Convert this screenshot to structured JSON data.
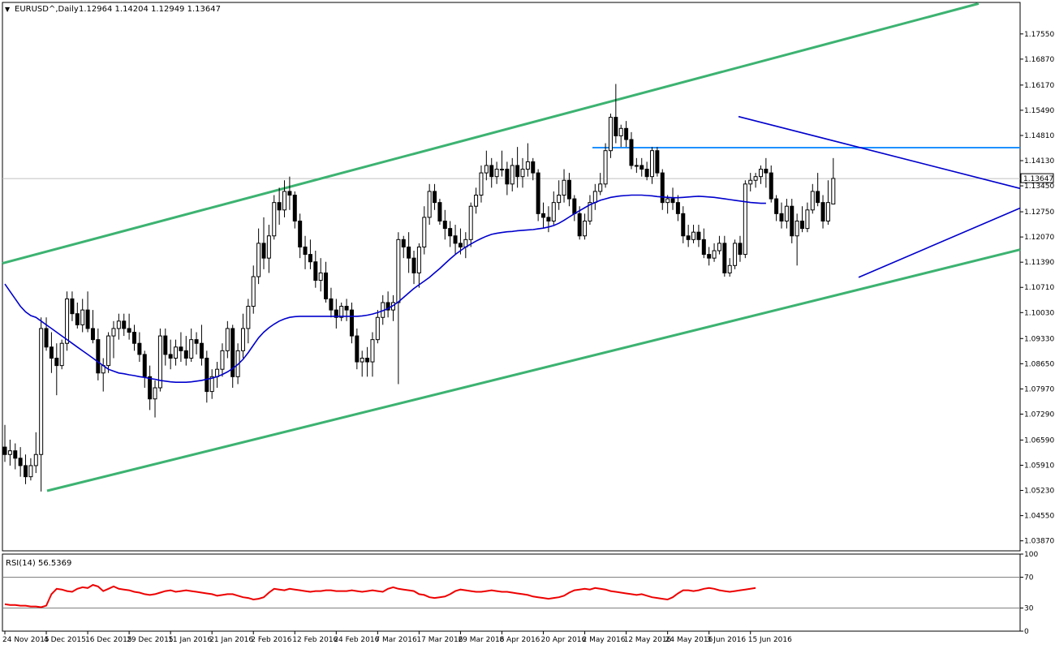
{
  "header": {
    "marker": "▼",
    "symbol_timeframe": "EURUSD^,Daily",
    "ohlc": "1.12964 1.14204 1.12949 1.13647"
  },
  "rsi_label": "RSI(14) 56.5369",
  "chart_data": {
    "type": "candlestick",
    "colors": {
      "channel": "#3cb371",
      "moving_average": "#0000cd",
      "triangle": "#0000cd",
      "resistance": "#1e90ff",
      "rsi": "#ee0000",
      "candles": "#000000",
      "bid_line": "#c0c0c0"
    },
    "price_axis": {
      "range": [
        1.036,
        1.184
      ],
      "ticks": [
        "1.17550",
        "1.16870",
        "1.16170",
        "1.15490",
        "1.14810",
        "1.14130",
        "1.13450",
        "1.12750",
        "1.12070",
        "1.11390",
        "1.10710",
        "1.10030",
        "1.09330",
        "1.08650",
        "1.07970",
        "1.07290",
        "1.06590",
        "1.05910",
        "1.05230",
        "1.04550",
        "1.03870"
      ],
      "current_price": "1.13647"
    },
    "rsi_axis": {
      "range": [
        0,
        100
      ],
      "ticks": [
        "100",
        "70",
        "30",
        "0"
      ],
      "levels": [
        70,
        30
      ]
    },
    "date_labels": [
      "24 Nov 2015",
      "4 Dec 2015",
      "16 Dec 2015",
      "29 Dec 2015",
      "11 Jan 2016",
      "21 Jan 2016",
      "2 Feb 2016",
      "12 Feb 2016",
      "24 Feb 2016",
      "7 Mar 2016",
      "17 Mar 2016",
      "29 Mar 2016",
      "8 Apr 2016",
      "20 Apr 2016",
      "2 May 2016",
      "12 May 2016",
      "24 May 2016",
      "3 Jun 2016",
      "15 Jun 2016"
    ],
    "date_label_bar_index": [
      0,
      8,
      16,
      24,
      32,
      40,
      48,
      56,
      64,
      72,
      80,
      88,
      96,
      104,
      112,
      120,
      128,
      136,
      144
    ],
    "candles": [
      [
        1.064,
        1.07,
        1.06,
        1.062
      ],
      [
        1.062,
        1.066,
        1.059,
        1.063
      ],
      [
        1.063,
        1.065,
        1.058,
        1.061
      ],
      [
        1.061,
        1.064,
        1.056,
        1.059
      ],
      [
        1.059,
        1.062,
        1.054,
        1.056
      ],
      [
        1.056,
        1.061,
        1.055,
        1.059
      ],
      [
        1.059,
        1.068,
        1.057,
        1.062
      ],
      [
        1.062,
        1.099,
        1.052,
        1.096
      ],
      [
        1.096,
        1.099,
        1.09,
        1.091
      ],
      [
        1.091,
        1.095,
        1.084,
        1.088
      ],
      [
        1.088,
        1.092,
        1.078,
        1.086
      ],
      [
        1.086,
        1.093,
        1.085,
        1.092
      ],
      [
        1.092,
        1.106,
        1.09,
        1.104
      ],
      [
        1.104,
        1.106,
        1.098,
        1.1
      ],
      [
        1.1,
        1.103,
        1.096,
        1.097
      ],
      [
        1.097,
        1.104,
        1.095,
        1.101
      ],
      [
        1.101,
        1.106,
        1.095,
        1.096
      ],
      [
        1.096,
        1.101,
        1.092,
        1.093
      ],
      [
        1.093,
        1.096,
        1.082,
        1.084
      ],
      [
        1.084,
        1.088,
        1.079,
        1.086
      ],
      [
        1.086,
        1.095,
        1.084,
        1.094
      ],
      [
        1.094,
        1.098,
        1.088,
        1.096
      ],
      [
        1.096,
        1.1,
        1.093,
        1.098
      ],
      [
        1.098,
        1.1,
        1.094,
        1.096
      ],
      [
        1.096,
        1.1,
        1.093,
        1.095
      ],
      [
        1.095,
        1.097,
        1.09,
        1.092
      ],
      [
        1.092,
        1.095,
        1.087,
        1.089
      ],
      [
        1.089,
        1.09,
        1.08,
        1.083
      ],
      [
        1.083,
        1.086,
        1.074,
        1.077
      ],
      [
        1.077,
        1.082,
        1.072,
        1.08
      ],
      [
        1.08,
        1.096,
        1.079,
        1.094
      ],
      [
        1.094,
        1.096,
        1.086,
        1.089
      ],
      [
        1.089,
        1.093,
        1.085,
        1.088
      ],
      [
        1.088,
        1.093,
        1.086,
        1.091
      ],
      [
        1.091,
        1.095,
        1.087,
        1.09
      ],
      [
        1.09,
        1.094,
        1.086,
        1.088
      ],
      [
        1.088,
        1.096,
        1.087,
        1.093
      ],
      [
        1.093,
        1.095,
        1.089,
        1.092
      ],
      [
        1.092,
        1.097,
        1.086,
        1.088
      ],
      [
        1.088,
        1.09,
        1.076,
        1.079
      ],
      [
        1.079,
        1.085,
        1.077,
        1.083
      ],
      [
        1.083,
        1.087,
        1.08,
        1.085
      ],
      [
        1.085,
        1.092,
        1.083,
        1.09
      ],
      [
        1.09,
        1.098,
        1.088,
        1.096
      ],
      [
        1.096,
        1.097,
        1.08,
        1.083
      ],
      [
        1.083,
        1.092,
        1.081,
        1.09
      ],
      [
        1.09,
        1.1,
        1.088,
        1.096
      ],
      [
        1.096,
        1.104,
        1.092,
        1.102
      ],
      [
        1.102,
        1.113,
        1.1,
        1.11
      ],
      [
        1.11,
        1.123,
        1.108,
        1.119
      ],
      [
        1.119,
        1.126,
        1.112,
        1.115
      ],
      [
        1.115,
        1.124,
        1.111,
        1.121
      ],
      [
        1.121,
        1.132,
        1.12,
        1.13
      ],
      [
        1.13,
        1.134,
        1.124,
        1.128
      ],
      [
        1.128,
        1.136,
        1.126,
        1.133
      ],
      [
        1.133,
        1.137,
        1.128,
        1.132
      ],
      [
        1.132,
        1.133,
        1.123,
        1.125
      ],
      [
        1.125,
        1.127,
        1.115,
        1.118
      ],
      [
        1.118,
        1.121,
        1.112,
        1.116
      ],
      [
        1.116,
        1.12,
        1.112,
        1.114
      ],
      [
        1.114,
        1.117,
        1.107,
        1.109
      ],
      [
        1.109,
        1.115,
        1.106,
        1.111
      ],
      [
        1.111,
        1.114,
        1.103,
        1.104
      ],
      [
        1.104,
        1.107,
        1.099,
        1.101
      ],
      [
        1.101,
        1.104,
        1.096,
        1.099
      ],
      [
        1.099,
        1.103,
        1.098,
        1.102
      ],
      [
        1.102,
        1.104,
        1.098,
        1.101
      ],
      [
        1.101,
        1.103,
        1.092,
        1.094
      ],
      [
        1.094,
        1.096,
        1.085,
        1.087
      ],
      [
        1.087,
        1.09,
        1.083,
        1.088
      ],
      [
        1.088,
        1.091,
        1.083,
        1.087
      ],
      [
        1.087,
        1.095,
        1.083,
        1.093
      ],
      [
        1.093,
        1.101,
        1.092,
        1.099
      ],
      [
        1.099,
        1.105,
        1.097,
        1.103
      ],
      [
        1.103,
        1.106,
        1.099,
        1.101
      ],
      [
        1.101,
        1.105,
        1.098,
        1.103
      ],
      [
        1.103,
        1.122,
        1.081,
        1.12
      ],
      [
        1.12,
        1.121,
        1.115,
        1.118
      ],
      [
        1.118,
        1.122,
        1.111,
        1.115
      ],
      [
        1.115,
        1.117,
        1.108,
        1.111
      ],
      [
        1.111,
        1.119,
        1.107,
        1.118
      ],
      [
        1.118,
        1.129,
        1.116,
        1.126
      ],
      [
        1.126,
        1.135,
        1.124,
        1.133
      ],
      [
        1.133,
        1.135,
        1.128,
        1.13
      ],
      [
        1.13,
        1.131,
        1.124,
        1.125
      ],
      [
        1.125,
        1.128,
        1.12,
        1.123
      ],
      [
        1.123,
        1.125,
        1.118,
        1.121
      ],
      [
        1.121,
        1.124,
        1.116,
        1.119
      ],
      [
        1.119,
        1.123,
        1.116,
        1.118
      ],
      [
        1.118,
        1.122,
        1.115,
        1.12
      ],
      [
        1.12,
        1.13,
        1.118,
        1.129
      ],
      [
        1.129,
        1.134,
        1.127,
        1.132
      ],
      [
        1.132,
        1.14,
        1.13,
        1.138
      ],
      [
        1.138,
        1.144,
        1.136,
        1.14
      ],
      [
        1.14,
        1.142,
        1.134,
        1.137
      ],
      [
        1.137,
        1.141,
        1.135,
        1.139
      ],
      [
        1.139,
        1.144,
        1.137,
        1.139
      ],
      [
        1.139,
        1.141,
        1.132,
        1.135
      ],
      [
        1.135,
        1.142,
        1.133,
        1.14
      ],
      [
        1.14,
        1.145,
        1.134,
        1.137
      ],
      [
        1.137,
        1.142,
        1.134,
        1.139
      ],
      [
        1.139,
        1.146,
        1.137,
        1.141
      ],
      [
        1.141,
        1.142,
        1.136,
        1.138
      ],
      [
        1.138,
        1.139,
        1.125,
        1.127
      ],
      [
        1.127,
        1.13,
        1.123,
        1.126
      ],
      [
        1.126,
        1.129,
        1.122,
        1.125
      ],
      [
        1.125,
        1.133,
        1.124,
        1.13
      ],
      [
        1.13,
        1.136,
        1.128,
        1.132
      ],
      [
        1.132,
        1.139,
        1.13,
        1.136
      ],
      [
        1.136,
        1.138,
        1.129,
        1.131
      ],
      [
        1.131,
        1.132,
        1.125,
        1.127
      ],
      [
        1.127,
        1.129,
        1.12,
        1.121
      ],
      [
        1.121,
        1.127,
        1.12,
        1.125
      ],
      [
        1.125,
        1.132,
        1.124,
        1.13
      ],
      [
        1.13,
        1.135,
        1.128,
        1.133
      ],
      [
        1.133,
        1.138,
        1.132,
        1.135
      ],
      [
        1.135,
        1.146,
        1.134,
        1.144
      ],
      [
        1.144,
        1.154,
        1.142,
        1.153
      ],
      [
        1.153,
        1.162,
        1.146,
        1.148
      ],
      [
        1.148,
        1.151,
        1.145,
        1.15
      ],
      [
        1.15,
        1.152,
        1.145,
        1.147
      ],
      [
        1.147,
        1.149,
        1.139,
        1.14
      ],
      [
        1.14,
        1.142,
        1.138,
        1.14
      ],
      [
        1.14,
        1.142,
        1.137,
        1.139
      ],
      [
        1.139,
        1.141,
        1.136,
        1.137
      ],
      [
        1.137,
        1.145,
        1.135,
        1.144
      ],
      [
        1.144,
        1.145,
        1.137,
        1.138
      ],
      [
        1.138,
        1.139,
        1.128,
        1.13
      ],
      [
        1.13,
        1.132,
        1.127,
        1.131
      ],
      [
        1.131,
        1.134,
        1.128,
        1.13
      ],
      [
        1.13,
        1.132,
        1.125,
        1.127
      ],
      [
        1.127,
        1.129,
        1.119,
        1.121
      ],
      [
        1.121,
        1.124,
        1.118,
        1.12
      ],
      [
        1.12,
        1.124,
        1.119,
        1.122
      ],
      [
        1.122,
        1.124,
        1.118,
        1.12
      ],
      [
        1.12,
        1.123,
        1.115,
        1.116
      ],
      [
        1.116,
        1.118,
        1.113,
        1.115
      ],
      [
        1.115,
        1.119,
        1.114,
        1.117
      ],
      [
        1.117,
        1.121,
        1.116,
        1.119
      ],
      [
        1.119,
        1.121,
        1.11,
        1.111
      ],
      [
        1.111,
        1.115,
        1.11,
        1.113
      ],
      [
        1.113,
        1.12,
        1.112,
        1.119
      ],
      [
        1.119,
        1.121,
        1.114,
        1.116
      ],
      [
        1.116,
        1.136,
        1.115,
        1.135
      ],
      [
        1.135,
        1.138,
        1.133,
        1.136
      ],
      [
        1.136,
        1.138,
        1.134,
        1.137
      ],
      [
        1.137,
        1.14,
        1.135,
        1.139
      ],
      [
        1.139,
        1.142,
        1.134,
        1.138
      ],
      [
        1.138,
        1.14,
        1.13,
        1.131
      ],
      [
        1.131,
        1.132,
        1.125,
        1.127
      ],
      [
        1.127,
        1.13,
        1.123,
        1.125
      ],
      [
        1.125,
        1.131,
        1.123,
        1.129
      ],
      [
        1.129,
        1.131,
        1.119,
        1.121
      ],
      [
        1.121,
        1.127,
        1.113,
        1.125
      ],
      [
        1.125,
        1.129,
        1.122,
        1.123
      ],
      [
        1.123,
        1.13,
        1.122,
        1.128
      ],
      [
        1.128,
        1.135,
        1.127,
        1.133
      ],
      [
        1.133,
        1.138,
        1.129,
        1.13
      ],
      [
        1.13,
        1.132,
        1.123,
        1.125
      ],
      [
        1.125,
        1.136,
        1.124,
        1.13
      ],
      [
        1.1296,
        1.142,
        1.1295,
        1.1365
      ]
    ],
    "moving_average": [
      1.108,
      1.106,
      1.104,
      1.102,
      1.1005,
      1.0995,
      1.099,
      1.098,
      1.097,
      1.096,
      1.095,
      1.094,
      1.093,
      1.092,
      1.091,
      1.09,
      1.089,
      1.088,
      1.087,
      1.086,
      1.085,
      1.0845,
      1.084,
      1.0838,
      1.0835,
      1.0833,
      1.083,
      1.0828,
      1.0825,
      1.0823,
      1.082,
      1.0818,
      1.0816,
      1.0815,
      1.0815,
      1.0815,
      1.0816,
      1.0818,
      1.082,
      1.0823,
      1.0826,
      1.083,
      1.0836,
      1.0843,
      1.0852,
      1.0863,
      1.0877,
      1.0895,
      1.0915,
      1.0935,
      1.095,
      1.0962,
      1.0972,
      1.098,
      1.0986,
      1.099,
      1.0992,
      1.0993,
      1.0993,
      1.0993,
      1.0993,
      1.0993,
      1.0993,
      1.0993,
      1.0993,
      1.0993,
      1.0993,
      1.0993,
      1.0993,
      1.0994,
      1.0996,
      1.0999,
      1.1003,
      1.1008,
      1.1014,
      1.1022,
      1.1032,
      1.1044,
      1.1056,
      1.1068,
      1.1078,
      1.1088,
      1.1098,
      1.111,
      1.1122,
      1.1135,
      1.1148,
      1.116,
      1.117,
      1.118,
      1.1188,
      1.1196,
      1.1203,
      1.1209,
      1.1214,
      1.1217,
      1.1219,
      1.1221,
      1.1222,
      1.1224,
      1.1225,
      1.1226,
      1.1227,
      1.1229,
      1.1231,
      1.1234,
      1.1238,
      1.1244,
      1.1252,
      1.1261,
      1.127,
      1.1278,
      1.1286,
      1.1294,
      1.13,
      1.1306,
      1.131,
      1.1314,
      1.1316,
      1.1318,
      1.1319,
      1.132,
      1.132,
      1.132,
      1.1319,
      1.1318,
      1.1316,
      1.1315,
      1.1314,
      1.1313,
      1.1313,
      1.1314,
      1.1315,
      1.1316,
      1.1317,
      1.1316,
      1.1315,
      1.1314,
      1.1312,
      1.131,
      1.1308,
      1.1306,
      1.1304,
      1.1302,
      1.13,
      1.1299,
      1.1298,
      1.1298
    ],
    "rsi": [
      35,
      34,
      34,
      33,
      33,
      32,
      32,
      31,
      33,
      48,
      55,
      54,
      52,
      51,
      55,
      57,
      56,
      60,
      58,
      52,
      55,
      58,
      55,
      54,
      53,
      51,
      50,
      48,
      47,
      48,
      50,
      52,
      53,
      51,
      52,
      53,
      52,
      51,
      50,
      49,
      48,
      46,
      47,
      48,
      48,
      46,
      44,
      43,
      41,
      42,
      44,
      50,
      55,
      54,
      53,
      55,
      54,
      53,
      52,
      51,
      52,
      52,
      53,
      53,
      52,
      52,
      52,
      53,
      52,
      51,
      52,
      53,
      52,
      51,
      55,
      57,
      55,
      54,
      53,
      52,
      48,
      47,
      44,
      43,
      44,
      45,
      48,
      52,
      54,
      53,
      52,
      51,
      51,
      52,
      53,
      52,
      51,
      51,
      50,
      49,
      48,
      47,
      45,
      44,
      43,
      42,
      43,
      44,
      46,
      50,
      53,
      54,
      55,
      54,
      56,
      55,
      54,
      52,
      51,
      50,
      49,
      48,
      47,
      48,
      46,
      44,
      43,
      42,
      41,
      44,
      49,
      53,
      53,
      52,
      53,
      55,
      56,
      55,
      53,
      52,
      51,
      52,
      53,
      54,
      55,
      56
    ]
  }
}
